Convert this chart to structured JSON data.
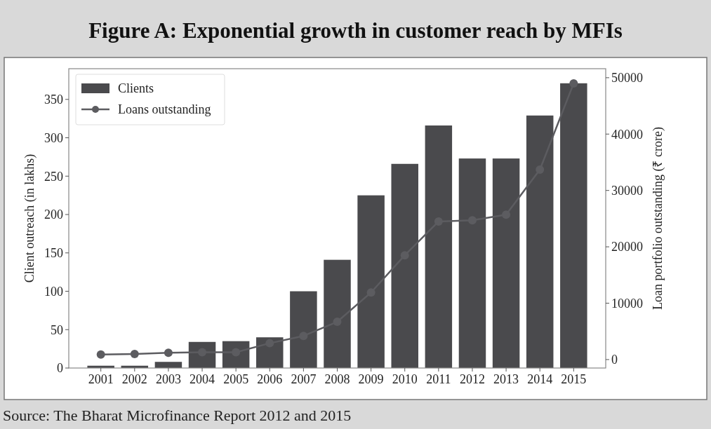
{
  "chart_data": {
    "type": "bar",
    "title": "Figure A: Exponential growth in customer reach by MFIs",
    "categories": [
      "2001",
      "2002",
      "2003",
      "2004",
      "2005",
      "2006",
      "2007",
      "2008",
      "2009",
      "2010",
      "2011",
      "2012",
      "2013",
      "2014",
      "2015"
    ],
    "series": [
      {
        "name": "Clients",
        "color": "#4a4a4d",
        "values": [
          3,
          3,
          8,
          34,
          35,
          40,
          100,
          141,
          225,
          266,
          316,
          273,
          273,
          329,
          371
        ]
      },
      {
        "name": "Loans outstanding",
        "type": "line",
        "axis": "y2",
        "color": "#5c5c60",
        "marker": "circle",
        "values": [
          900,
          1000,
          1200,
          1300,
          1300,
          2900,
          4200,
          6700,
          11900,
          18500,
          24500,
          24700,
          25700,
          33700,
          49000
        ]
      }
    ],
    "ylabel": "Client outreach (in lakhs)",
    "y2label": "Loan portfolio outstanding (₹ crore)",
    "ylim": [
      0,
      390
    ],
    "yticks": [
      0,
      50,
      100,
      150,
      200,
      250,
      300,
      350
    ],
    "y2lim": [
      -1500,
      51600
    ],
    "y2ticks": [
      0,
      10000,
      20000,
      30000,
      40000,
      50000
    ],
    "legend": "top left",
    "grid": false,
    "annotations": [
      "Source: The Bharat Microfinance Report 2012 and 2015"
    ]
  }
}
